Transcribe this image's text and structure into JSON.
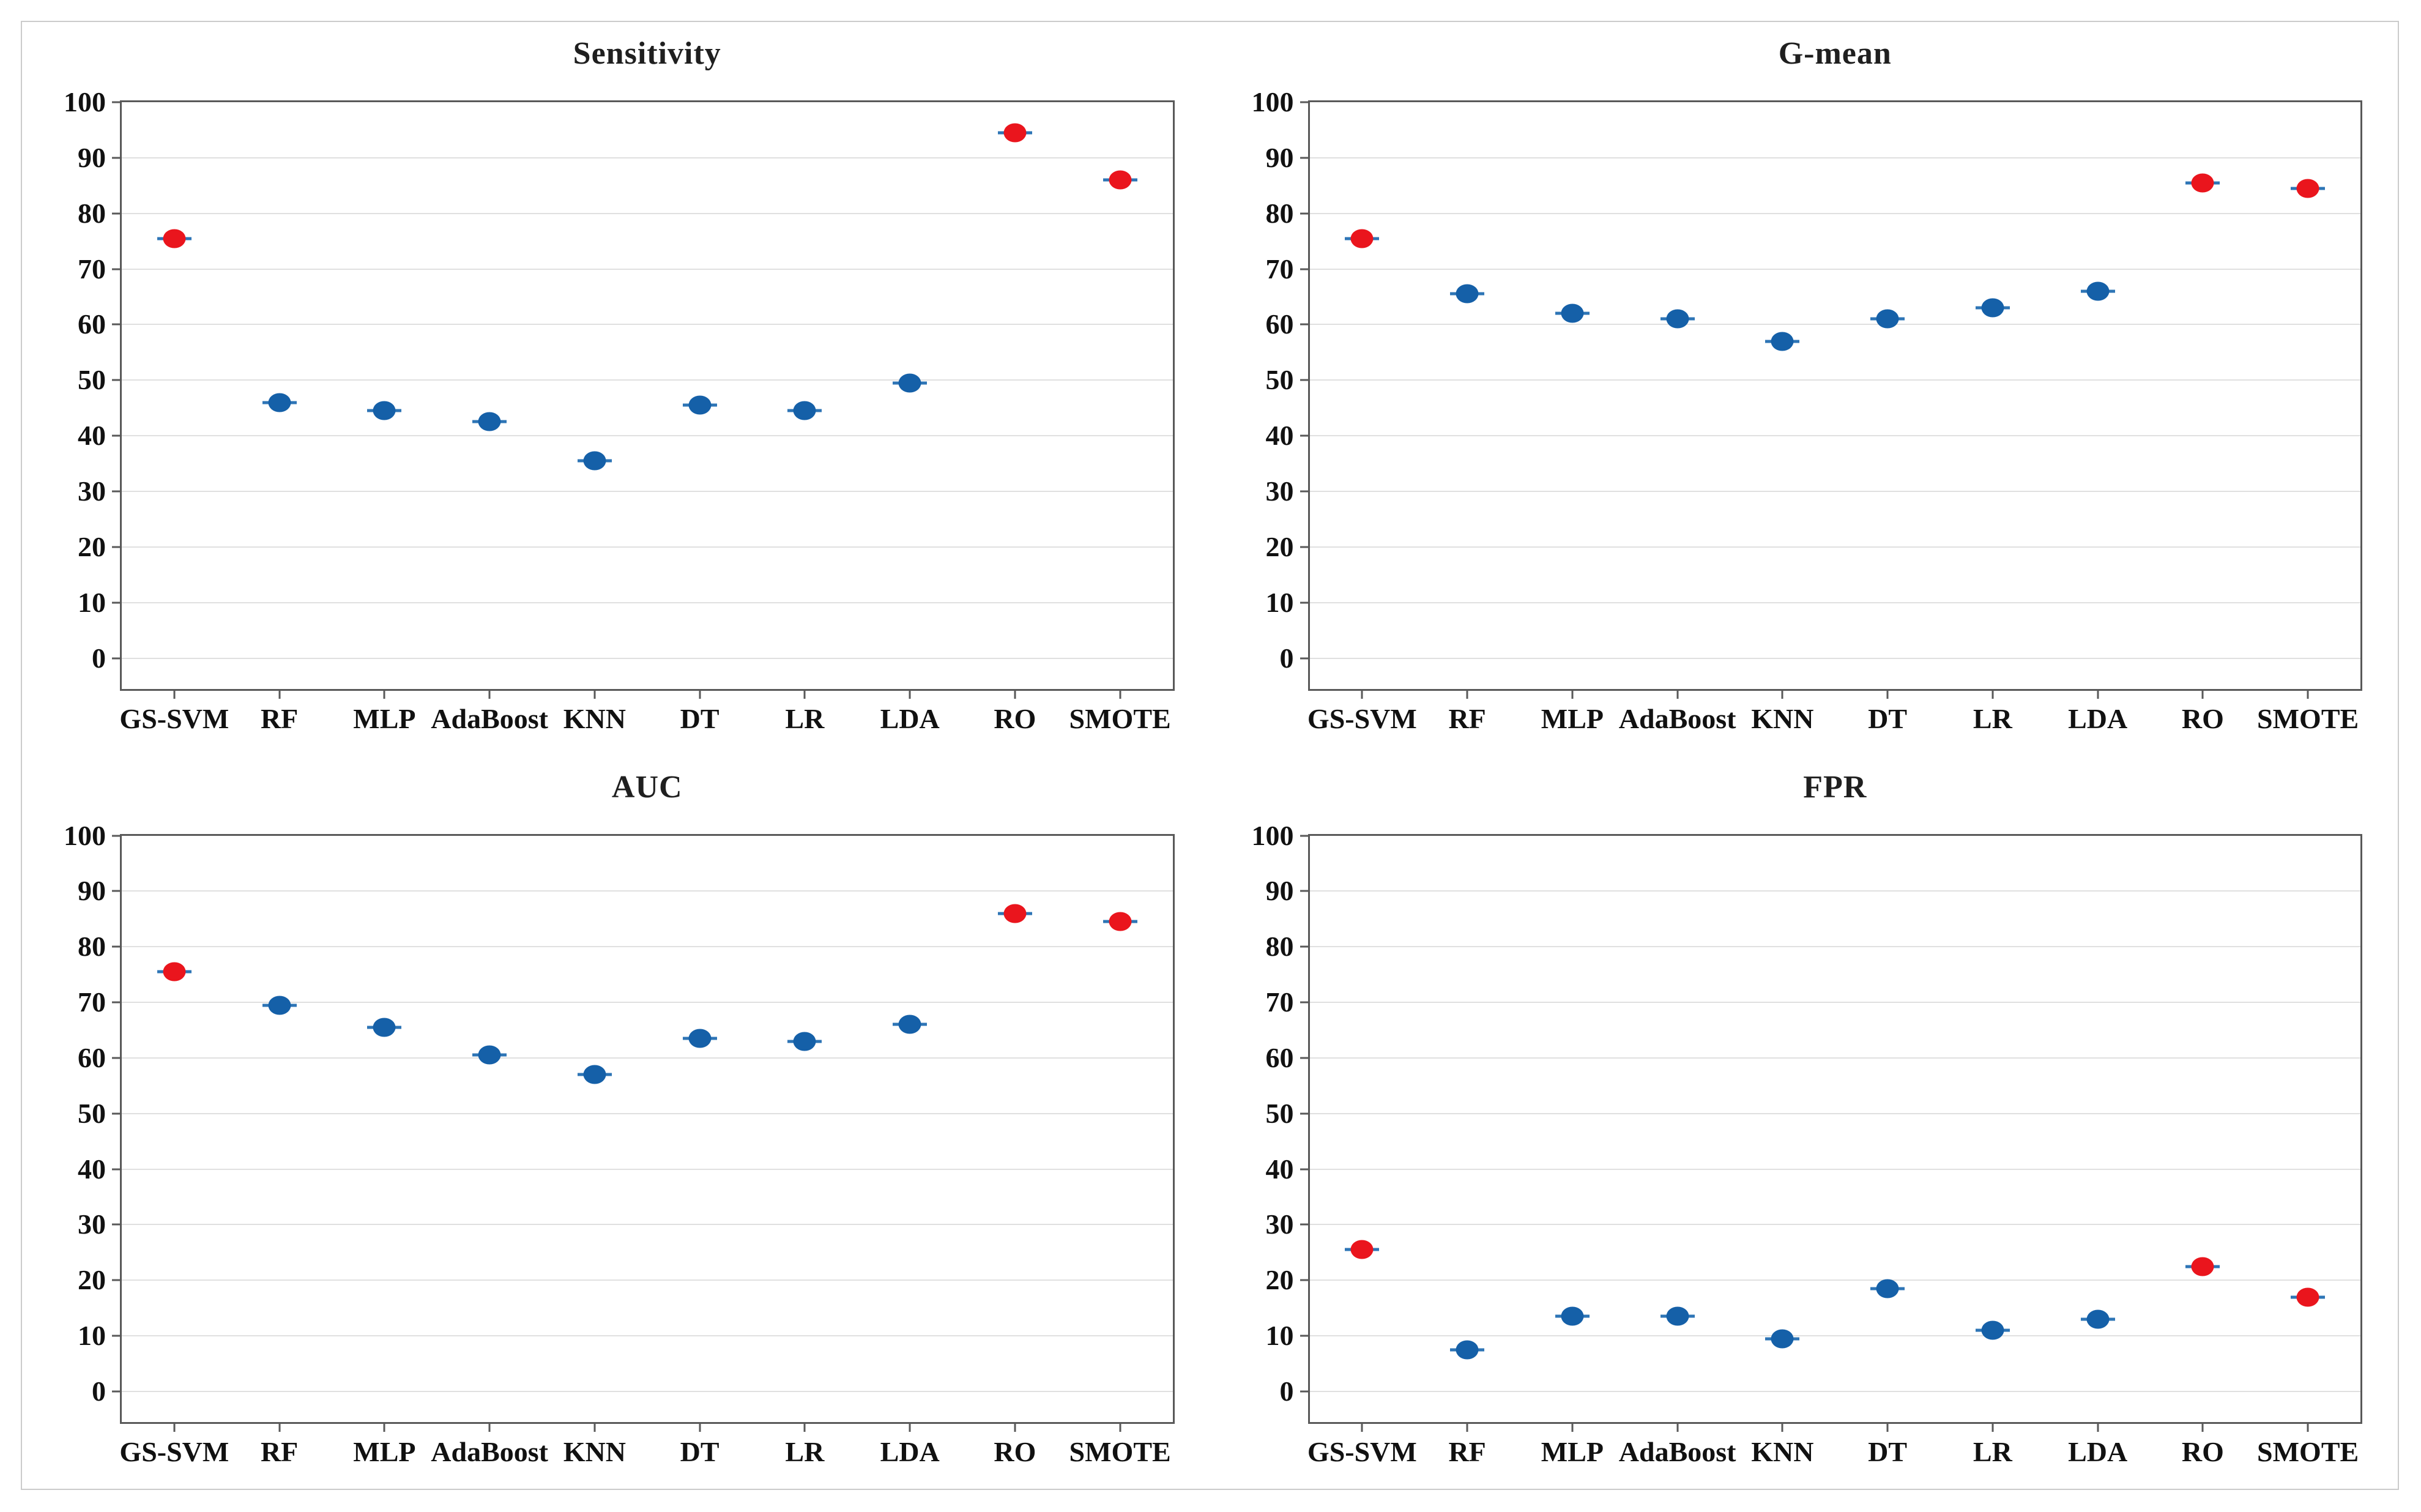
{
  "page": {
    "background": "#ffffff",
    "frame_border_color": "#cbcbcb"
  },
  "palette": {
    "highlight": "#EA151D",
    "normal": "#1560A8",
    "whisker": "#2E75B6",
    "grid": "#e0e0e0",
    "axis": "#595959",
    "text": "#111111",
    "title_text": "#1f1f1f"
  },
  "chart_data": [
    {
      "type": "scatter",
      "title": "Sensitivity",
      "categories": [
        "GS-SVM",
        "RF",
        "MLP",
        "AdaBoost",
        "KNN",
        "DT",
        "LR",
        "LDA",
        "RO",
        "SMOTE"
      ],
      "values": [
        75.5,
        46,
        44.5,
        42.5,
        35.5,
        45.5,
        44.5,
        49.5,
        94.5,
        86
      ],
      "point_colors": [
        "highlight",
        "normal",
        "normal",
        "normal",
        "normal",
        "normal",
        "normal",
        "normal",
        "highlight",
        "highlight"
      ],
      "xlabel": "",
      "ylabel": "",
      "ylim": [
        0,
        100
      ],
      "ytick_step": 10,
      "grid": "horizontal",
      "legend": "none"
    },
    {
      "type": "scatter",
      "title": "G-mean",
      "categories": [
        "GS-SVM",
        "RF",
        "MLP",
        "AdaBoost",
        "KNN",
        "DT",
        "LR",
        "LDA",
        "RO",
        "SMOTE"
      ],
      "values": [
        75.5,
        65.5,
        62,
        61,
        57,
        61,
        63,
        66,
        85.5,
        84.5
      ],
      "point_colors": [
        "highlight",
        "normal",
        "normal",
        "normal",
        "normal",
        "normal",
        "normal",
        "normal",
        "highlight",
        "highlight"
      ],
      "xlabel": "",
      "ylabel": "",
      "ylim": [
        0,
        100
      ],
      "ytick_step": 10,
      "grid": "horizontal",
      "legend": "none"
    },
    {
      "type": "scatter",
      "title": "AUC",
      "categories": [
        "GS-SVM",
        "RF",
        "MLP",
        "AdaBoost",
        "KNN",
        "DT",
        "LR",
        "LDA",
        "RO",
        "SMOTE"
      ],
      "values": [
        75.5,
        69.5,
        65.5,
        60.5,
        57,
        63.5,
        63,
        66,
        86,
        84.5
      ],
      "point_colors": [
        "highlight",
        "normal",
        "normal",
        "normal",
        "normal",
        "normal",
        "normal",
        "normal",
        "highlight",
        "highlight"
      ],
      "xlabel": "",
      "ylabel": "",
      "ylim": [
        0,
        100
      ],
      "ytick_step": 10,
      "grid": "horizontal",
      "legend": "none"
    },
    {
      "type": "scatter",
      "title": "FPR",
      "categories": [
        "GS-SVM",
        "RF",
        "MLP",
        "AdaBoost",
        "KNN",
        "DT",
        "LR",
        "LDA",
        "RO",
        "SMOTE"
      ],
      "values": [
        25.5,
        7.5,
        13.5,
        13.5,
        9.5,
        18.5,
        11,
        13,
        22.5,
        17
      ],
      "point_colors": [
        "highlight",
        "normal",
        "normal",
        "normal",
        "normal",
        "normal",
        "normal",
        "normal",
        "highlight",
        "highlight"
      ],
      "xlabel": "",
      "ylabel": "",
      "ylim": [
        0,
        100
      ],
      "ytick_step": 10,
      "grid": "horizontal",
      "legend": "none"
    }
  ]
}
